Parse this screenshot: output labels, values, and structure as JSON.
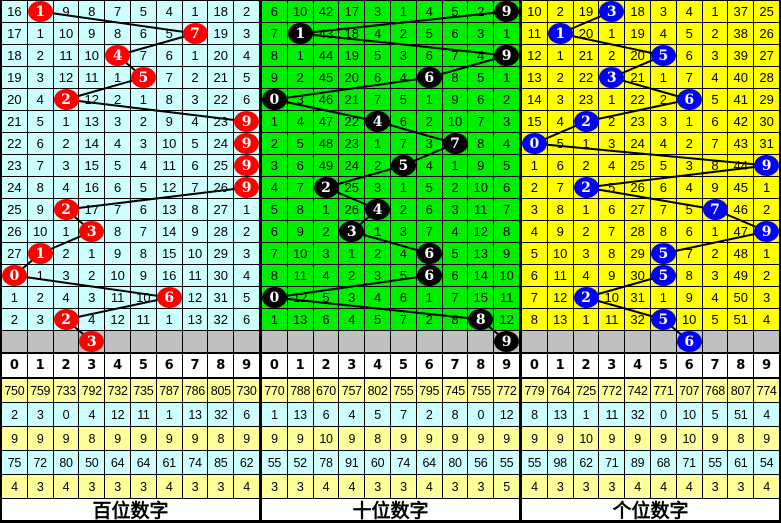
{
  "header_digits": [
    "0",
    "1",
    "2",
    "3",
    "4",
    "5",
    "6",
    "7",
    "8",
    "9"
  ],
  "colors": {
    "gray_row": "#c0c0c0",
    "stat_yellow": "#ffff99",
    "stat_cyan": "#ccffff"
  },
  "panels": [
    {
      "label": "百位数字",
      "cell_color": "#ccffff",
      "ball_color": "#ff0000",
      "rows": [
        [
          16,
          1,
          9,
          8,
          7,
          5,
          4,
          1,
          18,
          2
        ],
        [
          17,
          1,
          10,
          9,
          8,
          6,
          5,
          7,
          19,
          3
        ],
        [
          18,
          2,
          11,
          10,
          4,
          7,
          6,
          1,
          20,
          4
        ],
        [
          19,
          3,
          12,
          11,
          1,
          5,
          7,
          2,
          21,
          5
        ],
        [
          20,
          4,
          2,
          12,
          2,
          1,
          8,
          3,
          22,
          6
        ],
        [
          21,
          5,
          1,
          13,
          3,
          2,
          9,
          4,
          23,
          9
        ],
        [
          22,
          6,
          2,
          14,
          4,
          3,
          10,
          5,
          24,
          9
        ],
        [
          23,
          7,
          3,
          15,
          5,
          4,
          11,
          6,
          25,
          9
        ],
        [
          24,
          8,
          4,
          16,
          6,
          5,
          12,
          7,
          26,
          9
        ],
        [
          25,
          9,
          2,
          17,
          7,
          6,
          13,
          8,
          27,
          1
        ],
        [
          26,
          10,
          1,
          3,
          8,
          7,
          14,
          9,
          28,
          2
        ],
        [
          27,
          1,
          2,
          1,
          9,
          8,
          15,
          10,
          29,
          3
        ],
        [
          0,
          1,
          3,
          2,
          10,
          9,
          16,
          11,
          30,
          4
        ],
        [
          1,
          2,
          4,
          3,
          11,
          10,
          6,
          12,
          31,
          5
        ],
        [
          2,
          3,
          2,
          4,
          12,
          11,
          1,
          13,
          32,
          6
        ]
      ],
      "balls": [
        1,
        7,
        4,
        5,
        2,
        9,
        9,
        9,
        9,
        2,
        3,
        1,
        0,
        6,
        2
      ],
      "next_ball": 3,
      "stats": [
        [
          "750",
          "759",
          "733",
          "792",
          "732",
          "735",
          "787",
          "786",
          "805",
          "730"
        ],
        [
          "2",
          "3",
          "0",
          "4",
          "12",
          "11",
          "1",
          "13",
          "32",
          "6"
        ],
        [
          "9",
          "9",
          "9",
          "8",
          "9",
          "9",
          "9",
          "9",
          "8",
          "9"
        ],
        [
          "75",
          "72",
          "80",
          "50",
          "64",
          "64",
          "61",
          "74",
          "85",
          "62"
        ],
        [
          "4",
          "3",
          "4",
          "3",
          "3",
          "3",
          "4",
          "3",
          "3",
          "4"
        ]
      ]
    },
    {
      "label": "十位数字",
      "cell_color": "#00ee00",
      "ball_color": "#000000",
      "rows": [
        [
          6,
          10,
          42,
          17,
          3,
          1,
          4,
          5,
          2,
          9
        ],
        [
          7,
          1,
          43,
          18,
          4,
          2,
          5,
          6,
          3,
          1
        ],
        [
          8,
          1,
          44,
          19,
          5,
          3,
          6,
          7,
          4,
          9
        ],
        [
          9,
          2,
          45,
          20,
          6,
          4,
          6,
          8,
          5,
          1
        ],
        [
          0,
          3,
          46,
          21,
          7,
          5,
          1,
          9,
          6,
          2
        ],
        [
          1,
          4,
          47,
          22,
          4,
          6,
          2,
          10,
          7,
          3
        ],
        [
          2,
          5,
          48,
          23,
          1,
          7,
          3,
          7,
          8,
          4
        ],
        [
          3,
          6,
          49,
          24,
          2,
          5,
          4,
          1,
          9,
          5
        ],
        [
          4,
          7,
          2,
          25,
          3,
          1,
          5,
          2,
          10,
          6
        ],
        [
          5,
          8,
          1,
          26,
          4,
          2,
          6,
          3,
          11,
          7
        ],
        [
          6,
          9,
          2,
          3,
          1,
          3,
          7,
          4,
          12,
          8
        ],
        [
          7,
          10,
          3,
          1,
          2,
          4,
          6,
          5,
          13,
          9
        ],
        [
          8,
          11,
          4,
          2,
          3,
          5,
          6,
          6,
          14,
          10
        ],
        [
          0,
          12,
          5,
          3,
          4,
          6,
          1,
          7,
          15,
          11
        ],
        [
          1,
          13,
          6,
          4,
          5,
          7,
          2,
          8,
          8,
          12
        ]
      ],
      "balls": [
        9,
        1,
        9,
        6,
        0,
        4,
        7,
        5,
        2,
        4,
        3,
        6,
        6,
        0,
        8
      ],
      "next_ball": 9,
      "stats": [
        [
          "770",
          "788",
          "670",
          "757",
          "802",
          "755",
          "795",
          "745",
          "755",
          "772"
        ],
        [
          "1",
          "13",
          "6",
          "4",
          "5",
          "7",
          "2",
          "8",
          "0",
          "12"
        ],
        [
          "9",
          "9",
          "10",
          "9",
          "8",
          "9",
          "9",
          "9",
          "9",
          "9"
        ],
        [
          "55",
          "52",
          "78",
          "91",
          "60",
          "74",
          "64",
          "80",
          "56",
          "55"
        ],
        [
          "3",
          "3",
          "4",
          "4",
          "3",
          "3",
          "4",
          "3",
          "3",
          "5"
        ]
      ]
    },
    {
      "label": "个位数字",
      "cell_color": "#ffff00",
      "ball_color": "#0000ff",
      "rows": [
        [
          10,
          2,
          19,
          3,
          18,
          3,
          4,
          1,
          37,
          25
        ],
        [
          11,
          1,
          20,
          1,
          19,
          4,
          5,
          2,
          38,
          26
        ],
        [
          12,
          1,
          21,
          2,
          20,
          5,
          6,
          3,
          39,
          27
        ],
        [
          13,
          2,
          22,
          3,
          21,
          1,
          7,
          4,
          40,
          28
        ],
        [
          14,
          3,
          23,
          1,
          22,
          2,
          6,
          5,
          41,
          29
        ],
        [
          15,
          4,
          2,
          2,
          23,
          3,
          1,
          6,
          42,
          30
        ],
        [
          0,
          5,
          1,
          3,
          24,
          4,
          2,
          7,
          43,
          31
        ],
        [
          1,
          6,
          2,
          4,
          25,
          5,
          3,
          8,
          44,
          9
        ],
        [
          2,
          7,
          2,
          5,
          26,
          6,
          4,
          9,
          45,
          1
        ],
        [
          3,
          8,
          1,
          6,
          27,
          7,
          5,
          7,
          46,
          2
        ],
        [
          4,
          9,
          2,
          7,
          28,
          8,
          6,
          1,
          47,
          9
        ],
        [
          5,
          10,
          3,
          8,
          29,
          5,
          7,
          2,
          48,
          1
        ],
        [
          6,
          11,
          4,
          9,
          30,
          5,
          8,
          3,
          49,
          2
        ],
        [
          7,
          12,
          2,
          10,
          31,
          1,
          9,
          4,
          50,
          3
        ],
        [
          8,
          13,
          1,
          11,
          32,
          5,
          10,
          5,
          51,
          4
        ]
      ],
      "balls": [
        3,
        1,
        5,
        3,
        6,
        2,
        0,
        9,
        2,
        7,
        9,
        5,
        5,
        2,
        5
      ],
      "next_ball": 6,
      "stats": [
        [
          "779",
          "764",
          "725",
          "772",
          "742",
          "771",
          "707",
          "768",
          "807",
          "774"
        ],
        [
          "8",
          "13",
          "1",
          "11",
          "32",
          "0",
          "10",
          "5",
          "51",
          "4"
        ],
        [
          "9",
          "9",
          "10",
          "9",
          "9",
          "9",
          "10",
          "9",
          "8",
          "9"
        ],
        [
          "55",
          "98",
          "62",
          "71",
          "89",
          "68",
          "71",
          "55",
          "61",
          "54"
        ],
        [
          "4",
          "3",
          "3",
          "3",
          "4",
          "4",
          "4",
          "3",
          "3",
          "4"
        ]
      ]
    }
  ]
}
